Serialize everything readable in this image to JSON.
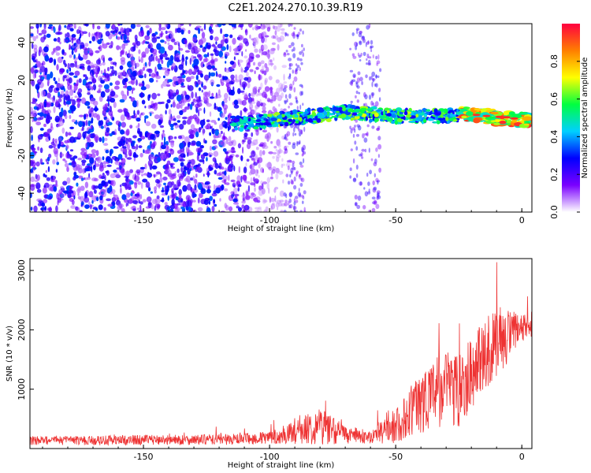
{
  "title": "C2E1.2024.270.10.39.R19",
  "chart_data": [
    {
      "type": "heatmap",
      "xlabel": "Height of straight line (km)",
      "ylabel": "Frequency (Hz)",
      "xlim": [
        -195,
        4
      ],
      "ylim": [
        -50,
        50
      ],
      "xticks": [
        "-150",
        "-100",
        "-50",
        "0"
      ],
      "yticks": [
        "-40",
        "-20",
        "0",
        "20",
        "40"
      ],
      "colorbar": {
        "label": "Normalized spectral amplitude",
        "range": [
          0,
          1
        ],
        "ticks": [
          "0.0",
          "0.2",
          "0.4",
          "0.6",
          "0.8"
        ],
        "colors": [
          "#ffffff",
          "#7a00ff",
          "#0000ff",
          "#00d0ff",
          "#00ff40",
          "#ffff00",
          "#ff7f00",
          "#ff0040"
        ]
      },
      "ridge": {
        "note_points": [
          [
            -110,
            -3
          ],
          [
            -90,
            0
          ],
          [
            -70,
            3
          ],
          [
            -50,
            1
          ],
          [
            -30,
            1
          ],
          [
            -20,
            2
          ],
          [
            -10,
            0
          ],
          [
            0,
            -1
          ]
        ],
        "peak_region_x": [
          -25,
          0
        ],
        "peak_amplitude": 0.95
      },
      "noise_region_x": [
        -195,
        -98
      ],
      "noise_amplitude": 0.3
    },
    {
      "type": "line",
      "xlabel": "Height of straight line (km)",
      "ylabel": "SNR (10 * v/v)",
      "xlim": [
        -195,
        4
      ],
      "ylim": [
        0,
        3200
      ],
      "xticks": [
        "-150",
        "-100",
        "-50",
        "0"
      ],
      "yticks": [
        "1000",
        "2000",
        "3000"
      ],
      "color": "#ee3333",
      "envelope": {
        "x": [
          -195,
          -170,
          -150,
          -130,
          -110,
          -100,
          -90,
          -80,
          -75,
          -70,
          -60,
          -50,
          -45,
          -40,
          -30,
          -25,
          -20,
          -15,
          -10,
          -5,
          0,
          4
        ],
        "base": [
          120,
          120,
          130,
          130,
          140,
          160,
          230,
          330,
          270,
          200,
          170,
          320,
          500,
          700,
          900,
          900,
          1150,
          1450,
          1700,
          1800,
          1950,
          2050
        ],
        "spread": [
          150,
          160,
          170,
          170,
          190,
          230,
          380,
          650,
          500,
          300,
          220,
          600,
          800,
          1100,
          1300,
          1400,
          1200,
          1300,
          1200,
          900,
          550,
          450
        ]
      }
    }
  ]
}
